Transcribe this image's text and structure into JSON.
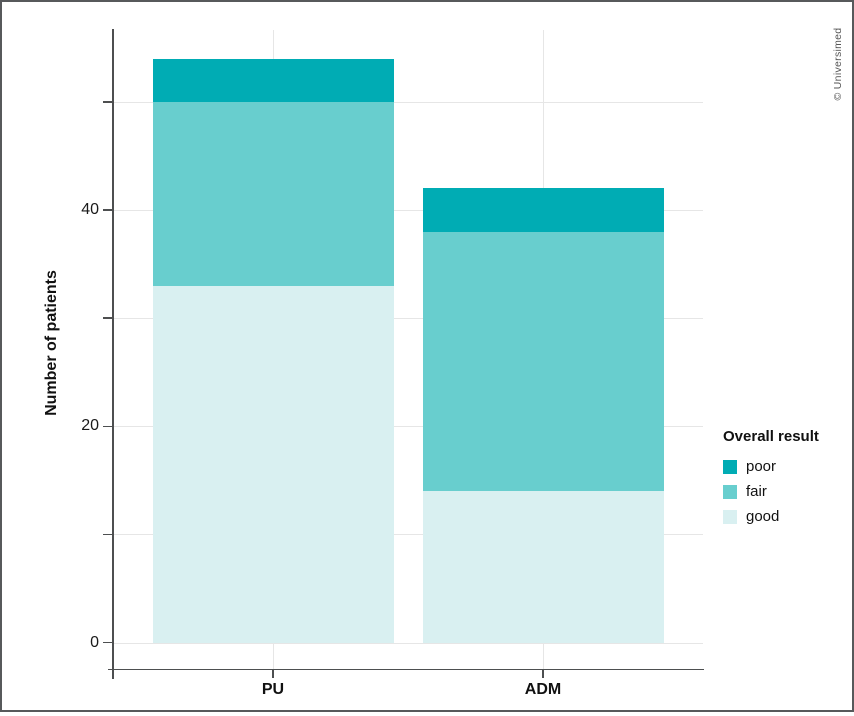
{
  "credit": "© Universimed",
  "chart_data": {
    "type": "bar",
    "stacked": true,
    "categories": [
      "PU",
      "ADM"
    ],
    "series": [
      {
        "name": "good",
        "color": "#d9f0f1",
        "values": [
          33,
          14
        ]
      },
      {
        "name": "fair",
        "color": "#68cece",
        "values": [
          17,
          24
        ]
      },
      {
        "name": "poor",
        "color": "#00acb4",
        "values": [
          4,
          4
        ]
      }
    ],
    "totals": [
      54,
      42
    ],
    "xlabel": "",
    "ylabel": "Number of patients",
    "yticks": [
      {
        "v": 0,
        "label": "0"
      },
      {
        "v": 10,
        "label": ""
      },
      {
        "v": 20,
        "label": "20"
      },
      {
        "v": 30,
        "label": ""
      },
      {
        "v": 40,
        "label": "40"
      },
      {
        "v": 50,
        "label": ""
      }
    ],
    "ylim": [
      -2.7,
      56.7
    ],
    "grid": true,
    "legend": {
      "title": "Overall result",
      "items": [
        "poor",
        "fair",
        "good"
      ],
      "position": "right"
    }
  }
}
